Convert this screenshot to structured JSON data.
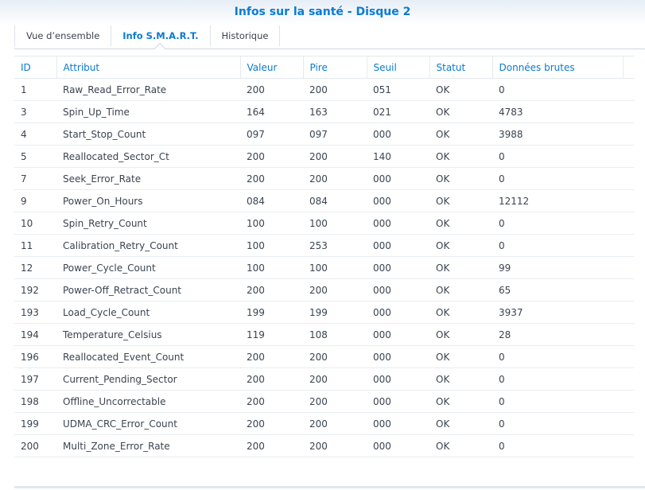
{
  "window": {
    "title": "Infos sur la santé - Disque 2"
  },
  "tabs": [
    {
      "label": "Vue d’ensemble",
      "active": false
    },
    {
      "label": "Info S.M.A.R.T.",
      "active": true
    },
    {
      "label": "Historique",
      "active": false
    }
  ],
  "colors": {
    "accent": "#0a7bd0"
  },
  "table": {
    "columns": [
      "ID",
      "Attribut",
      "Valeur",
      "Pire",
      "Seuil",
      "Statut",
      "Données brutes"
    ],
    "rows": [
      [
        "1",
        "Raw_Read_Error_Rate",
        "200",
        "200",
        "051",
        "OK",
        "0"
      ],
      [
        "3",
        "Spin_Up_Time",
        "164",
        "163",
        "021",
        "OK",
        "4783"
      ],
      [
        "4",
        "Start_Stop_Count",
        "097",
        "097",
        "000",
        "OK",
        "3988"
      ],
      [
        "5",
        "Reallocated_Sector_Ct",
        "200",
        "200",
        "140",
        "OK",
        "0"
      ],
      [
        "7",
        "Seek_Error_Rate",
        "200",
        "200",
        "000",
        "OK",
        "0"
      ],
      [
        "9",
        "Power_On_Hours",
        "084",
        "084",
        "000",
        "OK",
        "12112"
      ],
      [
        "10",
        "Spin_Retry_Count",
        "100",
        "100",
        "000",
        "OK",
        "0"
      ],
      [
        "11",
        "Calibration_Retry_Count",
        "100",
        "253",
        "000",
        "OK",
        "0"
      ],
      [
        "12",
        "Power_Cycle_Count",
        "100",
        "100",
        "000",
        "OK",
        "99"
      ],
      [
        "192",
        "Power-Off_Retract_Count",
        "200",
        "200",
        "000",
        "OK",
        "65"
      ],
      [
        "193",
        "Load_Cycle_Count",
        "199",
        "199",
        "000",
        "OK",
        "3937"
      ],
      [
        "194",
        "Temperature_Celsius",
        "119",
        "108",
        "000",
        "OK",
        "28"
      ],
      [
        "196",
        "Reallocated_Event_Count",
        "200",
        "200",
        "000",
        "OK",
        "0"
      ],
      [
        "197",
        "Current_Pending_Sector",
        "200",
        "200",
        "000",
        "OK",
        "0"
      ],
      [
        "198",
        "Offline_Uncorrectable",
        "200",
        "200",
        "000",
        "OK",
        "0"
      ],
      [
        "199",
        "UDMA_CRC_Error_Count",
        "200",
        "200",
        "000",
        "OK",
        "0"
      ],
      [
        "200",
        "Multi_Zone_Error_Rate",
        "200",
        "200",
        "000",
        "OK",
        "0"
      ]
    ]
  }
}
